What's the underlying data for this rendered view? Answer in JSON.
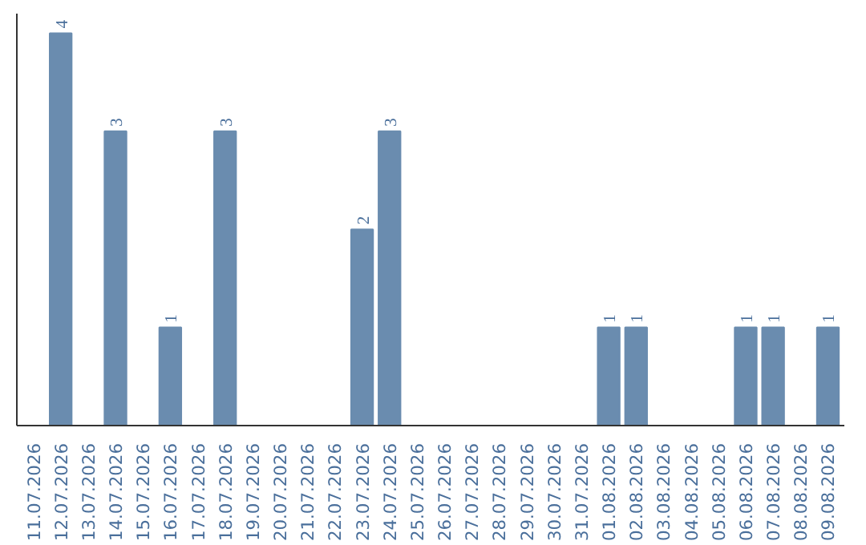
{
  "chart_data": {
    "type": "bar",
    "categories": [
      "11.07.2026",
      "12.07.2026",
      "13.07.2026",
      "14.07.2026",
      "15.07.2026",
      "16.07.2026",
      "17.07.2026",
      "18.07.2026",
      "19.07.2026",
      "20.07.2026",
      "21.07.2026",
      "22.07.2026",
      "23.07.2026",
      "24.07.2026",
      "25.07.2026",
      "26.07.2026",
      "27.07.2026",
      "28.07.2026",
      "29.07.2026",
      "30.07.2026",
      "31.07.2026",
      "01.08.2026",
      "02.08.2026",
      "03.08.2026",
      "04.08.2026",
      "05.08.2026",
      "06.08.2026",
      "07.08.2026",
      "08.08.2026",
      "09.08.2026"
    ],
    "values": [
      0,
      4,
      0,
      3,
      0,
      1,
      0,
      3,
      0,
      0,
      0,
      0,
      2,
      3,
      0,
      0,
      0,
      0,
      0,
      0,
      0,
      1,
      1,
      0,
      0,
      0,
      1,
      1,
      0,
      1
    ],
    "value_labels": [
      null,
      "4",
      null,
      "3",
      null,
      "1",
      null,
      "3",
      null,
      null,
      null,
      null,
      "2",
      "3",
      null,
      null,
      null,
      null,
      null,
      null,
      null,
      "1",
      "1",
      null,
      null,
      null,
      "1",
      "1",
      null,
      "1"
    ],
    "color": "#6a8caf",
    "tick_labels": "x"
  }
}
